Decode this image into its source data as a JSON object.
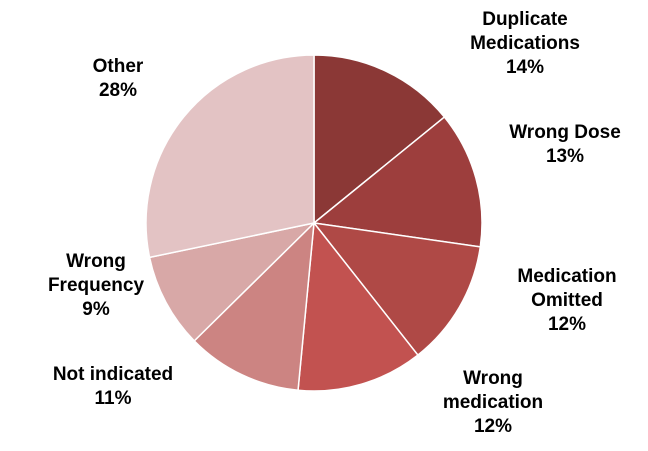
{
  "chart_data": {
    "type": "pie",
    "categories": [
      "Duplicate Medications",
      "Wrong Dose",
      "Medication Omitted",
      "Wrong medication",
      "Not indicated",
      "Wrong Frequency",
      "Other"
    ],
    "values": [
      14,
      13,
      12,
      12,
      11,
      9,
      28
    ],
    "value_labels": [
      "14%",
      "13%",
      "12%",
      "12%",
      "11%",
      "9%",
      "28%"
    ],
    "colors": [
      "#8b3836",
      "#9d3e3d",
      "#af4946",
      "#c25250",
      "#cc8482",
      "#d8a8a7",
      "#e3c3c4"
    ]
  }
}
